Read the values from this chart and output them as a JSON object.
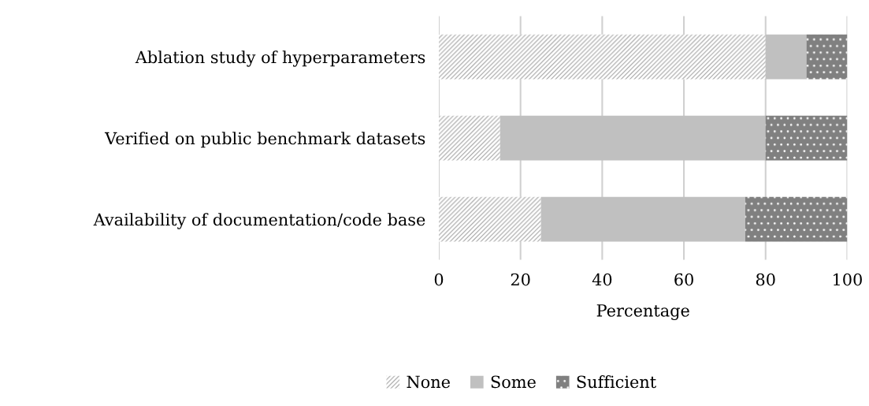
{
  "chart_data": {
    "type": "bar",
    "orientation": "horizontal",
    "stacked": true,
    "categories": [
      "Ablation study of hyperparameters",
      "Verified on public benchmark datasets",
      "Availability of documentation/code base"
    ],
    "series": [
      {
        "name": "None",
        "color": "#a6a6a6",
        "values": [
          80,
          15,
          25
        ]
      },
      {
        "name": "Some",
        "color": "#c0c0c0",
        "values": [
          10,
          65,
          50
        ]
      },
      {
        "name": "Sufficient",
        "color": "#808080",
        "values": [
          10,
          20,
          25
        ]
      }
    ],
    "xlabel": "Percentage",
    "xlim": [
      0,
      100
    ],
    "xticks": [
      0,
      20,
      40,
      60,
      80,
      100
    ],
    "grid": "x",
    "legend": "bottom"
  }
}
